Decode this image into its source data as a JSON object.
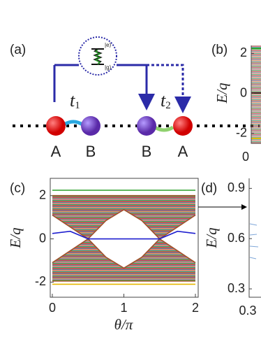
{
  "panel_a": {
    "label": "(a)",
    "excited": "|e⟩",
    "ground": "|g⟩",
    "couplings": [
      {
        "symbol": "t",
        "subscript": "1"
      },
      {
        "symbol": "t",
        "subscript": "2"
      }
    ],
    "sites": [
      "A",
      "B",
      "B",
      "A"
    ]
  },
  "panel_b": {
    "label": "(b)",
    "ylabel": "E/q",
    "ylim": [
      -2.5,
      2.4
    ],
    "yticks": [
      -2,
      0,
      2
    ],
    "xticks": [
      0
    ]
  },
  "chart_data": {
    "type": "line",
    "label": "(c)",
    "xlabel": "θ/π",
    "ylabel": "E/q",
    "xlim": [
      0,
      2
    ],
    "xticks": [
      0,
      1,
      2
    ],
    "ylim": [
      -2.7,
      2.8
    ],
    "yticks": [
      -2,
      0,
      2
    ],
    "x": [
      0,
      0.25,
      0.5,
      0.75,
      1,
      1.25,
      1.5,
      1.75,
      2
    ],
    "series": [
      {
        "color": "#2ca02c",
        "values": [
          2.25,
          2.25,
          2.25,
          2.25,
          2.25,
          2.25,
          2.25,
          2.25,
          2.25
        ]
      },
      {
        "color": "#a0522d",
        "values": [
          2.0,
          2.0,
          2.0,
          2.0,
          2.0,
          2.0,
          2.0,
          2.0,
          2.0
        ]
      },
      {
        "color": "#a0522d",
        "values": [
          1.1,
          0.55,
          0,
          0.85,
          1.35,
          0.85,
          0,
          0.55,
          1.1
        ],
        "fill_to": 1
      },
      {
        "color": "#a0522d",
        "values": [
          -1.1,
          -0.55,
          0,
          -0.85,
          -1.35,
          -0.85,
          0,
          -0.55,
          -1.1
        ],
        "fill_to": 4
      },
      {
        "color": "#a0522d",
        "values": [
          -1.95,
          -1.95,
          -1.95,
          -1.95,
          -1.95,
          -1.95,
          -1.95,
          -1.95,
          -1.95
        ]
      },
      {
        "color": "#1f1fcf",
        "values": [
          0.25,
          0.35,
          0,
          0,
          0,
          0,
          0,
          0.35,
          0.25
        ]
      },
      {
        "color": "#e6b800",
        "values": [
          -2.1,
          -2.1,
          -2.1,
          -2.1,
          -2.1,
          -2.1,
          -2.1,
          -2.1,
          -2.1
        ]
      }
    ]
  },
  "panel_d": {
    "label": "(d)",
    "ylabel": "E/q",
    "ylim": [
      0.25,
      0.96
    ],
    "yticks": [
      0.9,
      0.6,
      0.3
    ],
    "xticks": [
      0.3
    ]
  }
}
